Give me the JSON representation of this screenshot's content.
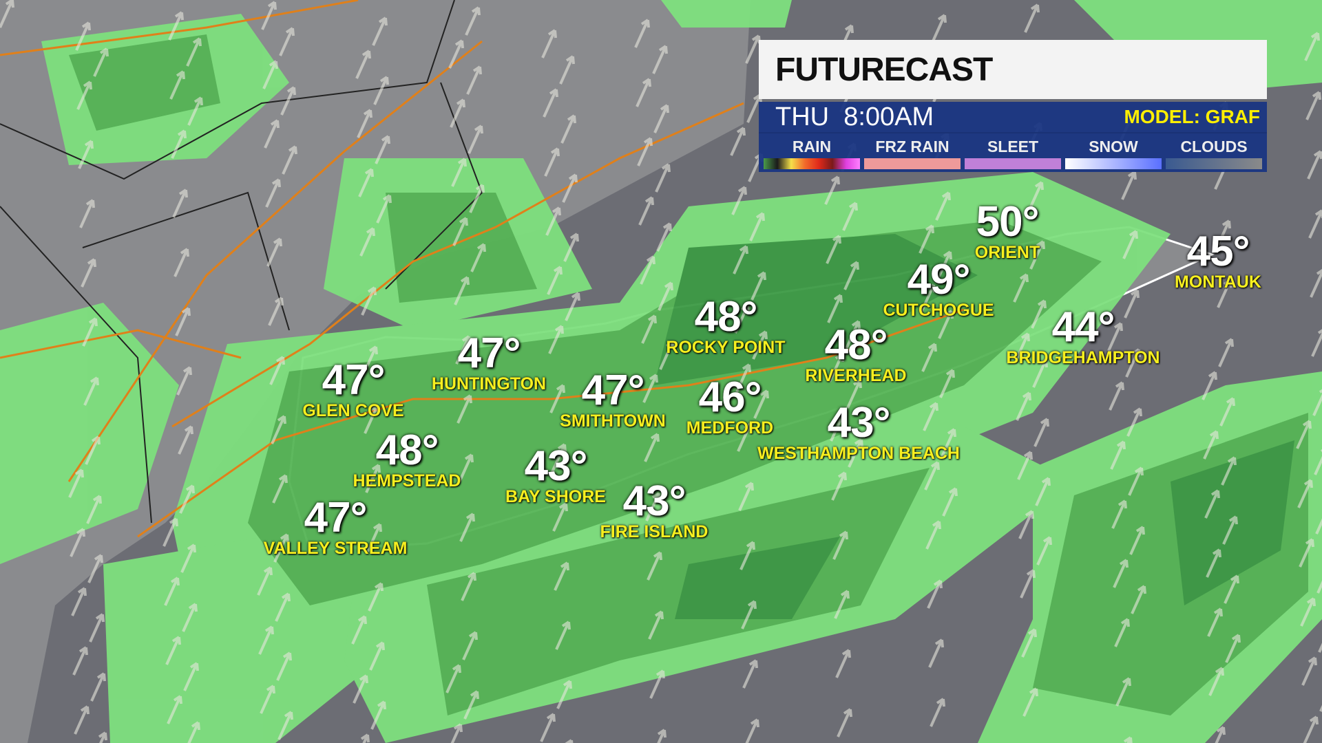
{
  "panel": {
    "title": "FUTURECAST",
    "day_time": "THU  8:00AM",
    "model": "MODEL: GRAF",
    "legend": [
      {
        "label": "RAIN",
        "gradient": [
          "#4a9a4a",
          "#1a1a1a",
          "#f5e04a",
          "#f26a2a",
          "#e02a1a",
          "#7a1a1a",
          "#e040e0",
          "#ff80ff"
        ]
      },
      {
        "label": "FRZ RAIN",
        "gradient": [
          "#ee9a9a",
          "#ee9a9a"
        ]
      },
      {
        "label": "SLEET",
        "gradient": [
          "#c080d8",
          "#c080d8"
        ]
      },
      {
        "label": "SNOW",
        "gradient": [
          "#ffffff",
          "#5a70ff"
        ]
      },
      {
        "label": "CLOUDS",
        "gradient": [
          "#3a5a90",
          "#8a8a8a"
        ]
      }
    ]
  },
  "colors": {
    "land": "#8a8b8e",
    "water": "#6c6d74",
    "rain_light": "#7ee07e",
    "rain_mid": "#56b556",
    "rain_heavy": "#3d9a45",
    "roads": "#e0801a",
    "temp_text": "#ffffff",
    "city_text": "#f7ef1f"
  },
  "cities": [
    {
      "temp": "50°",
      "name": "ORIENT"
    },
    {
      "temp": "45°",
      "name": "MONTAUK"
    },
    {
      "temp": "49°",
      "name": "CUTCHOGUE"
    },
    {
      "temp": "48°",
      "name": "ROCKY POINT"
    },
    {
      "temp": "48°",
      "name": "RIVERHEAD"
    },
    {
      "temp": "44°",
      "name": "BRIDGEHAMPTON"
    },
    {
      "temp": "47°",
      "name": "HUNTINGTON"
    },
    {
      "temp": "47°",
      "name": "GLEN COVE"
    },
    {
      "temp": "47°",
      "name": "SMITHTOWN"
    },
    {
      "temp": "46°",
      "name": "MEDFORD"
    },
    {
      "temp": "43°",
      "name": "WESTHAMPTON BEACH"
    },
    {
      "temp": "48°",
      "name": "HEMPSTEAD"
    },
    {
      "temp": "43°",
      "name": "BAY SHORE"
    },
    {
      "temp": "43°",
      "name": "FIRE ISLAND"
    },
    {
      "temp": "47°",
      "name": "VALLEY STREAM"
    }
  ]
}
